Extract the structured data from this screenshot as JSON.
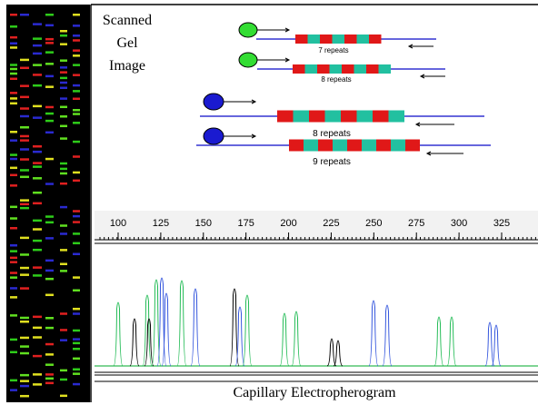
{
  "gel_label": [
    "Scanned",
    "Gel",
    "Image"
  ],
  "constructs": [
    {
      "label": "7 repeats"
    },
    {
      "label": "8 repeats"
    },
    {
      "label": "8 repeats"
    },
    {
      "label": "9 repeats"
    }
  ],
  "ruler": {
    "ticks": [
      100,
      125,
      150,
      175,
      200,
      225,
      250,
      275,
      300,
      325
    ]
  },
  "caption": "Capillary Electropherogram"
}
